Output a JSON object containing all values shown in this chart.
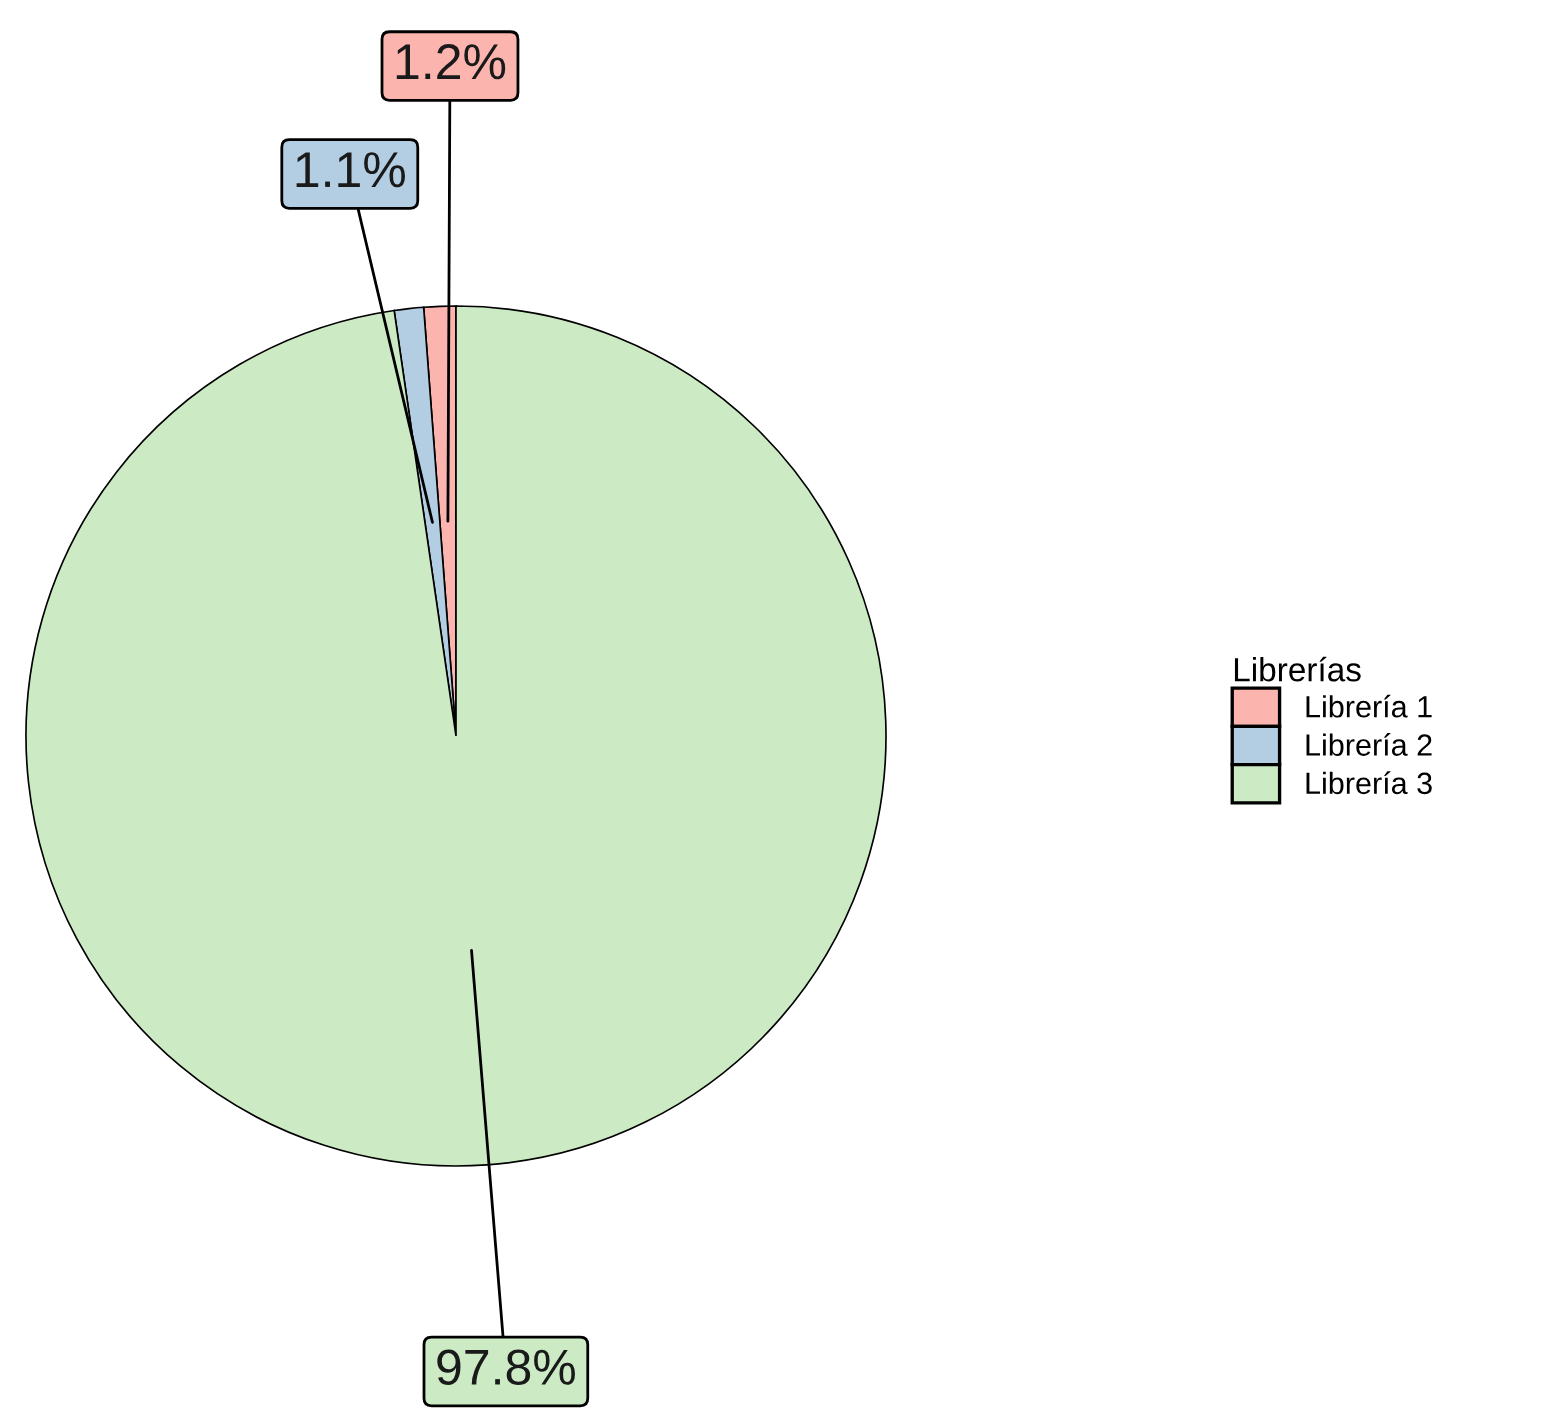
{
  "chart_data": {
    "type": "pie",
    "legend_title": "Librerías",
    "categories": [
      "Librería 1",
      "Librería 2",
      "Librería 3"
    ],
    "values": [
      1.2,
      1.1,
      97.8
    ],
    "colors": [
      "#fbb4ae",
      "#b3cde3",
      "#ccebc5"
    ],
    "value_labels": [
      "1.2%",
      "1.1%",
      "97.8%"
    ],
    "legend": "right"
  }
}
